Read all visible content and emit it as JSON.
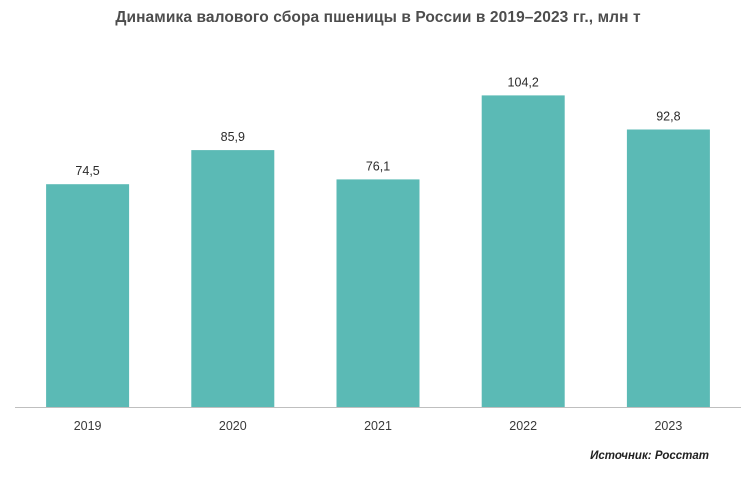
{
  "chart_data": {
    "type": "bar",
    "title": "Динамика валового сбора пшеницы в России в 2019–2023 гг., млн т",
    "categories": [
      "2019",
      "2020",
      "2021",
      "2022",
      "2023"
    ],
    "values": [
      74.5,
      85.9,
      76.1,
      104.2,
      92.8
    ],
    "value_labels": [
      "74,5",
      "85,9",
      "76,1",
      "104,2",
      "92,8"
    ],
    "xlabel": "",
    "ylabel": "",
    "ylim": [
      0,
      106
    ],
    "grid": false,
    "legend": "none",
    "bar_color": "#5bbab5",
    "axis_color": "#bfbfbf"
  },
  "source": "Источник: Росстат"
}
